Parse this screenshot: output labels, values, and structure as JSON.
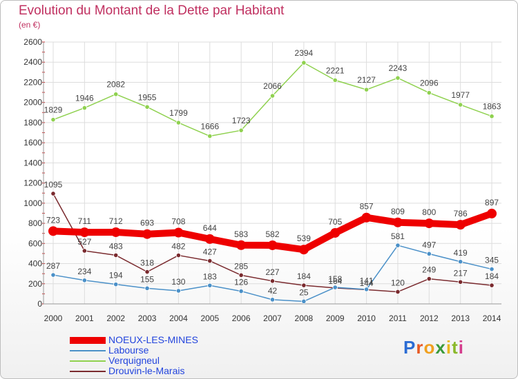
{
  "title": "Evolution du Montant de la Dette par Habitant",
  "unit": "(en €)",
  "logo": [
    "P",
    "r",
    "o",
    "x",
    "i",
    "t",
    "i"
  ],
  "chart_data": {
    "type": "line",
    "title": "Evolution du Montant de la Dette par Habitant",
    "subtitle": "(en €)",
    "x": [
      "2000",
      "2001",
      "2002",
      "2003",
      "2004",
      "2005",
      "2006",
      "2007",
      "2008",
      "2009",
      "2010",
      "2011",
      "2012",
      "2013",
      "2014"
    ],
    "ylim": [
      0,
      2600
    ],
    "yticks": [
      0,
      200,
      400,
      600,
      800,
      1000,
      1200,
      1400,
      1600,
      1800,
      2000,
      2200,
      2400,
      2600
    ],
    "grid": true,
    "legend": "bottom-left",
    "series": [
      {
        "name": "Verquigneul",
        "color": "#8fd14f",
        "values": [
          1829,
          1946,
          2082,
          1955,
          1799,
          1666,
          1723,
          2066,
          2394,
          2221,
          2127,
          2243,
          2096,
          1977,
          1863
        ]
      },
      {
        "name": "Drouvin-le-Marais",
        "color": "#7a2a2e",
        "values": [
          1095,
          527,
          483,
          318,
          482,
          427,
          285,
          227,
          184,
          158,
          141,
          120,
          249,
          217,
          184
        ]
      },
      {
        "name": "Labourse",
        "color": "#4a90c8",
        "values": [
          287,
          234,
          194,
          155,
          130,
          183,
          126,
          42,
          25,
          164,
          144,
          581,
          497,
          419,
          345
        ]
      },
      {
        "name": "NOEUX-LES-MINES",
        "color": "#ee0000",
        "values": [
          723,
          711,
          712,
          693,
          708,
          644,
          583,
          582,
          539,
          705,
          857,
          809,
          800,
          786,
          897
        ]
      }
    ],
    "label_colors": {
      "Verquigneul": "#444444",
      "Drouvin-le-Marais": "#444444",
      "Labourse": "#444444",
      "NOEUX-LES-MINES": "#444444"
    }
  },
  "legend_items": [
    {
      "name": "NOEUX-LES-MINES",
      "color": "#ee0000"
    },
    {
      "name": "Labourse",
      "color": "#4a90c8"
    },
    {
      "name": "Verquigneul",
      "color": "#8fd14f"
    },
    {
      "name": "Drouvin-le-Marais",
      "color": "#7a2a2e"
    }
  ]
}
